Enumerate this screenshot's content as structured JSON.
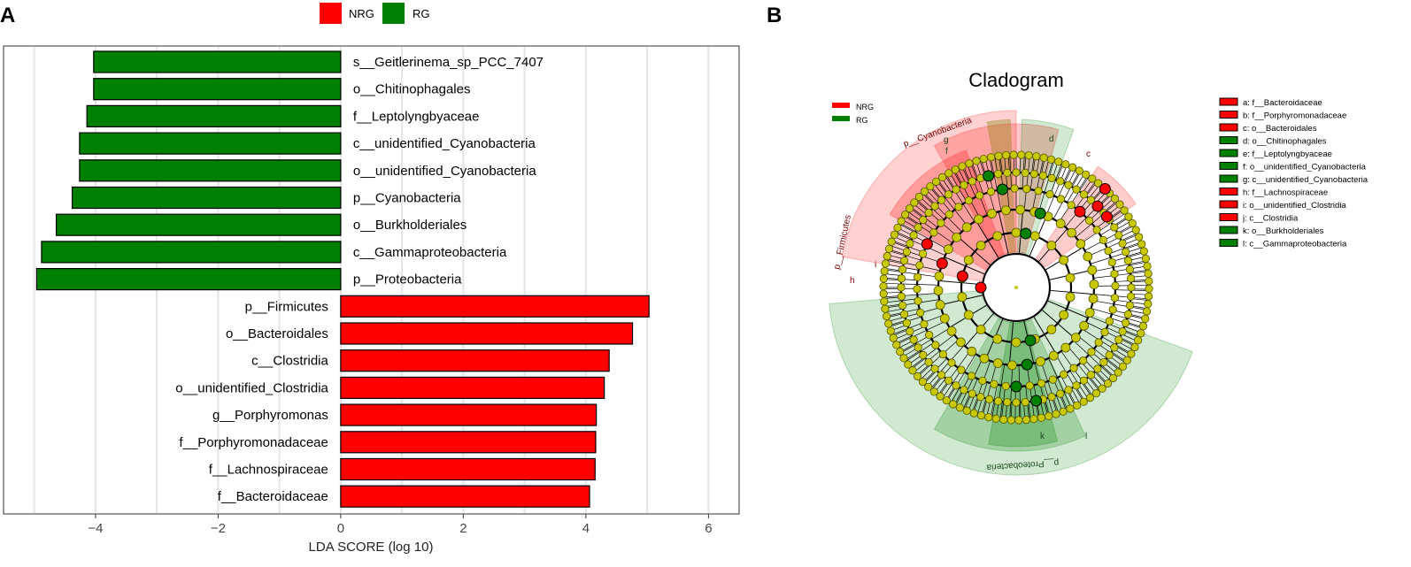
{
  "panel_a": {
    "letter": "A",
    "chart_data": {
      "type": "bar",
      "orientation": "horizontal",
      "xlabel": "LDA SCORE (log 10)",
      "xlim": [
        -5.5,
        6.5
      ],
      "xticks": [
        -4,
        -2,
        0,
        2,
        4,
        6
      ],
      "legend": [
        {
          "name": "NRG",
          "color": "#ff0000"
        },
        {
          "name": "RG",
          "color": "#008000"
        }
      ],
      "bars": [
        {
          "label": "s__Geitlerinema_sp_PCC_7407",
          "value": -4.03,
          "group": "RG"
        },
        {
          "label": "o__Chitinophagales",
          "value": -4.03,
          "group": "RG"
        },
        {
          "label": "f__Leptolyngbyaceae",
          "value": -4.14,
          "group": "RG"
        },
        {
          "label": "c__unidentified_Cyanobacteria",
          "value": -4.26,
          "group": "RG"
        },
        {
          "label": "o__unidentified_Cyanobacteria",
          "value": -4.26,
          "group": "RG"
        },
        {
          "label": "p__Cyanobacteria",
          "value": -4.38,
          "group": "RG"
        },
        {
          "label": "o__Burkholderiales",
          "value": -4.64,
          "group": "RG"
        },
        {
          "label": "c__Gammaproteobacteria",
          "value": -4.88,
          "group": "RG"
        },
        {
          "label": "p__Proteobacteria",
          "value": -4.96,
          "group": "RG"
        },
        {
          "label": "p__Firmicutes",
          "value": 5.03,
          "group": "NRG"
        },
        {
          "label": "o__Bacteroidales",
          "value": 4.76,
          "group": "NRG"
        },
        {
          "label": "c__Clostridia",
          "value": 4.38,
          "group": "NRG"
        },
        {
          "label": "o__unidentified_Clostridia",
          "value": 4.3,
          "group": "NRG"
        },
        {
          "label": "g__Porphyromonas",
          "value": 4.17,
          "group": "NRG"
        },
        {
          "label": "f__Porphyromonadaceae",
          "value": 4.16,
          "group": "NRG"
        },
        {
          "label": "f__Lachnospiraceae",
          "value": 4.15,
          "group": "NRG"
        },
        {
          "label": "f__Bacteroidaceae",
          "value": 4.06,
          "group": "NRG"
        }
      ]
    }
  },
  "panel_b": {
    "letter": "B",
    "title": "Cladogram",
    "legend": [
      {
        "name": "NRG",
        "color": "#ff0000"
      },
      {
        "name": "RG",
        "color": "#008000"
      }
    ],
    "clade_labels": [
      {
        "text": "p__Cyanobacteria",
        "group": "RG"
      },
      {
        "text": "p__Firmicutes",
        "group": "NRG"
      },
      {
        "text": "p__Proteobacteria",
        "group": "RG"
      },
      {
        "text": "d",
        "group": "RG"
      },
      {
        "text": "c",
        "group": "NRG"
      },
      {
        "text": "g",
        "group": "RG"
      },
      {
        "text": "f",
        "group": "RG"
      },
      {
        "text": "k",
        "group": "RG"
      },
      {
        "text": "l",
        "group": "RG"
      },
      {
        "text": "h",
        "group": "NRG"
      },
      {
        "text": "i",
        "group": "NRG"
      }
    ],
    "key": [
      {
        "text": "a: f__Bacteroidaceae",
        "group": "NRG"
      },
      {
        "text": "b: f__Porphyromonadaceae",
        "group": "NRG"
      },
      {
        "text": "c: o__Bacteroidales",
        "group": "NRG"
      },
      {
        "text": "d: o__Chitinophagales",
        "group": "RG"
      },
      {
        "text": "e: f__Leptolyngbyaceae",
        "group": "RG"
      },
      {
        "text": "f: o__unidentified_Cyanobacteria",
        "group": "RG"
      },
      {
        "text": "g: c__unidentified_Cyanobacteria",
        "group": "RG"
      },
      {
        "text": "h: f__Lachnospiraceae",
        "group": "NRG"
      },
      {
        "text": "i: o__unidentified_Clostridia",
        "group": "NRG"
      },
      {
        "text": "j: c__Clostridia",
        "group": "NRG"
      },
      {
        "text": "k: o__Burkholderiales",
        "group": "RG"
      },
      {
        "text": "l: c__Gammaproteobacteria",
        "group": "RG"
      }
    ]
  }
}
